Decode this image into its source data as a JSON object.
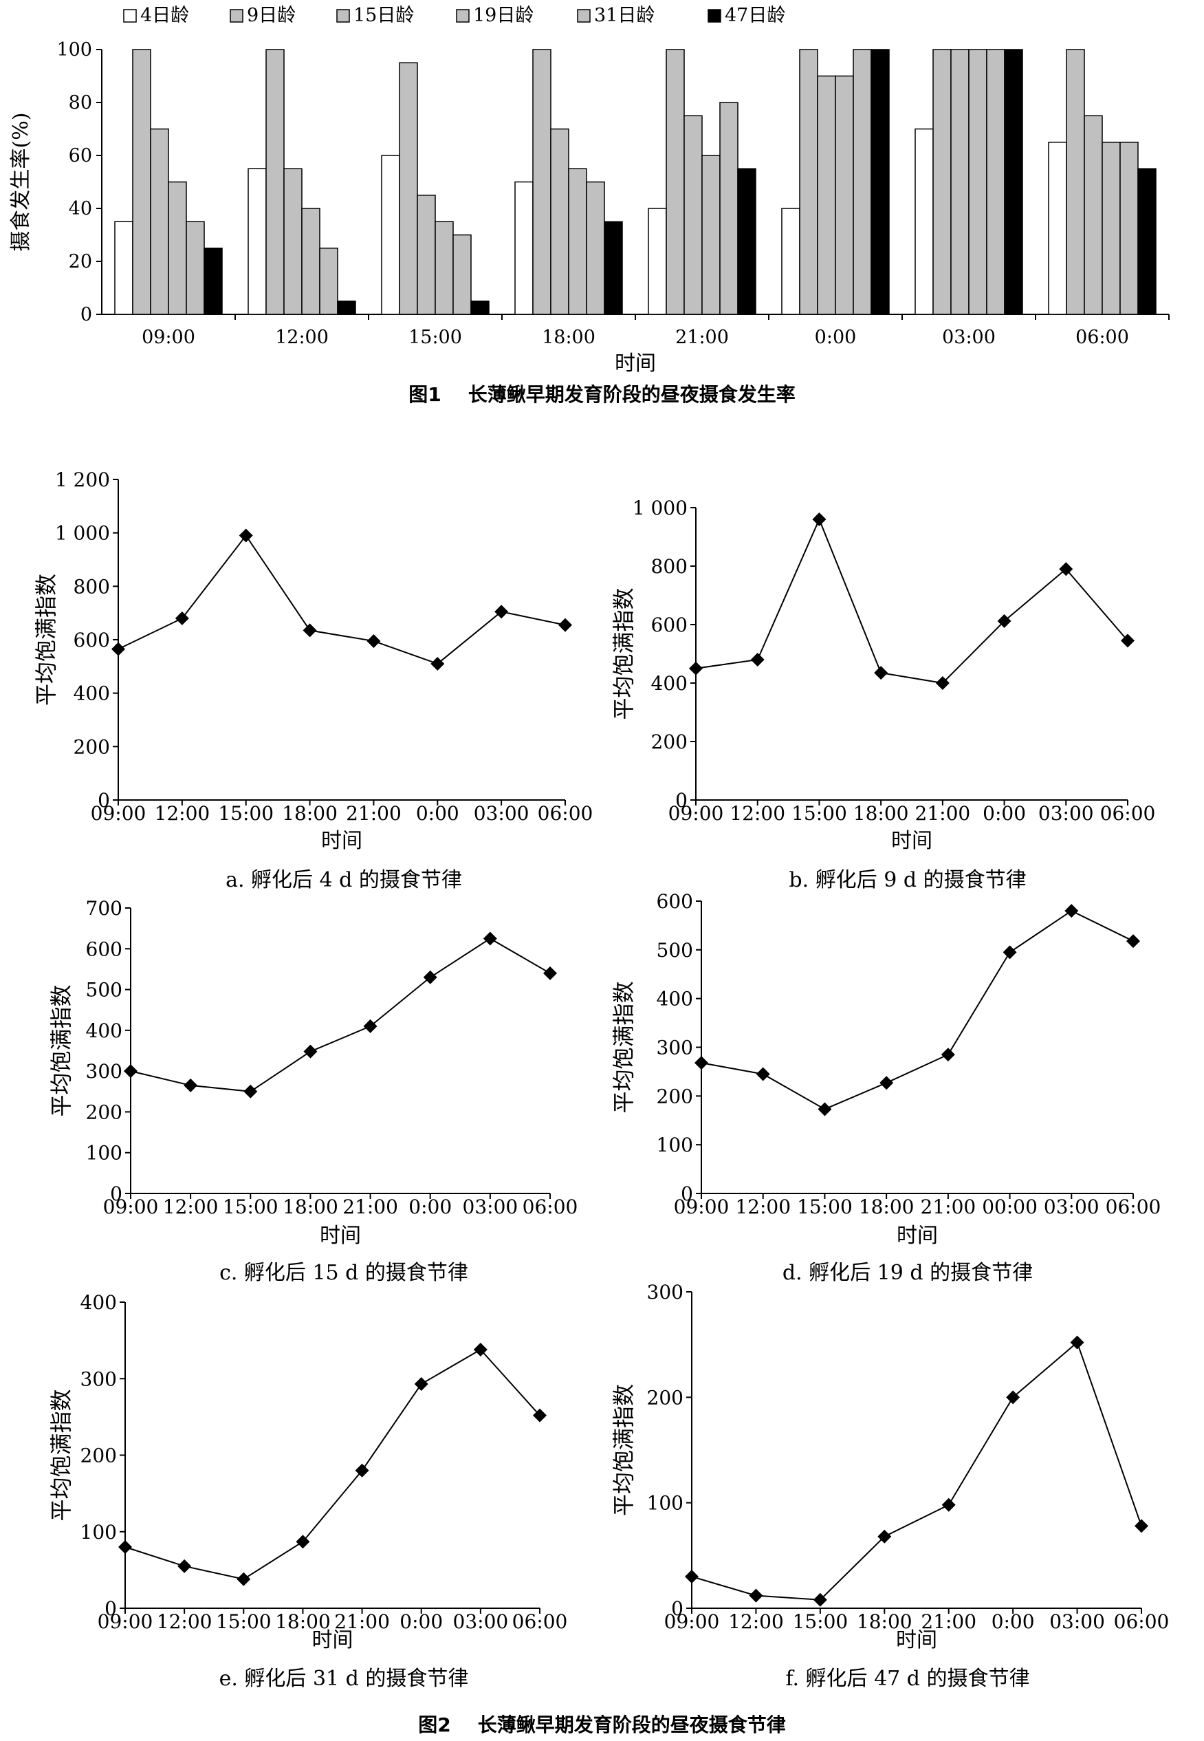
{
  "figure1": {
    "caption_label": "图1",
    "caption_title": "长薄鳅早期发育阶段的昼夜摄食发生率",
    "chart_data": {
      "type": "bar",
      "title": "",
      "xlabel": "时间",
      "ylabel": "摄食发生率(%)",
      "ylim": [
        0,
        100
      ],
      "yticks": [
        0,
        20,
        40,
        60,
        80,
        100
      ],
      "legend_position": "top",
      "categories": [
        "09:00",
        "12:00",
        "15:00",
        "18:00",
        "21:00",
        "0:00",
        "03:00",
        "06:00"
      ],
      "series": [
        {
          "name": "4日龄",
          "color": "#ffffff",
          "values": [
            35,
            55,
            60,
            50,
            40,
            40,
            70,
            65
          ]
        },
        {
          "name": "9日龄",
          "color": "#c0c0c0",
          "values": [
            100,
            100,
            95,
            100,
            100,
            100,
            100,
            100
          ]
        },
        {
          "name": "15日龄",
          "color": "#c0c0c0",
          "values": [
            70,
            55,
            45,
            70,
            75,
            90,
            100,
            75
          ]
        },
        {
          "name": "19日龄",
          "color": "#c0c0c0",
          "values": [
            50,
            40,
            35,
            55,
            60,
            90,
            100,
            65
          ]
        },
        {
          "name": "31日龄",
          "color": "#c0c0c0",
          "values": [
            35,
            25,
            30,
            50,
            80,
            100,
            100,
            65
          ]
        },
        {
          "name": "47日龄",
          "color": "#000000",
          "values": [
            25,
            5,
            5,
            35,
            55,
            100,
            100,
            55
          ]
        }
      ]
    }
  },
  "figure2": {
    "caption_label": "图2",
    "caption_title": "长薄鳅早期发育阶段的昼夜摄食节律",
    "panels": [
      {
        "caption": "a. 孵化后 4 d 的摄食节律",
        "chart_data": {
          "type": "line",
          "xlabel": "时间",
          "ylabel": "平均饱满指数",
          "x": [
            "09:00",
            "12:00",
            "15:00",
            "18:00",
            "21:00",
            "0:00",
            "03:00",
            "06:00"
          ],
          "ylim": [
            0,
            1200
          ],
          "yticks": [
            0,
            200,
            400,
            600,
            800,
            1000,
            1200
          ],
          "ytick_labels": [
            "0",
            "200",
            "400",
            "600",
            "800",
            "1 000",
            "1 200"
          ],
          "values": [
            565,
            680,
            990,
            635,
            595,
            510,
            705,
            655
          ]
        }
      },
      {
        "caption": "b. 孵化后 9 d 的摄食节律",
        "chart_data": {
          "type": "line",
          "xlabel": "时间",
          "ylabel": "平均饱满指数",
          "x": [
            "09:00",
            "12:00",
            "15:00",
            "18:00",
            "21:00",
            "0:00",
            "03:00",
            "06:00"
          ],
          "ylim": [
            0,
            1000
          ],
          "yticks": [
            0,
            200,
            400,
            600,
            800,
            1000
          ],
          "ytick_labels": [
            "0",
            "200",
            "400",
            "600",
            "800",
            "1 000"
          ],
          "values": [
            450,
            480,
            960,
            435,
            400,
            612,
            790,
            545
          ]
        }
      },
      {
        "caption": "c. 孵化后 15 d 的摄食节律",
        "chart_data": {
          "type": "line",
          "xlabel": "时间",
          "ylabel": "平均饱满指数",
          "x": [
            "09:00",
            "12:00",
            "15:00",
            "18:00",
            "21:00",
            "0:00",
            "03:00",
            "06:00"
          ],
          "ylim": [
            0,
            700
          ],
          "yticks": [
            0,
            100,
            200,
            300,
            400,
            500,
            600,
            700
          ],
          "ytick_labels": [
            "0",
            "100",
            "200",
            "300",
            "400",
            "500",
            "600",
            "700"
          ],
          "values": [
            300,
            265,
            250,
            348,
            410,
            530,
            625,
            540
          ]
        }
      },
      {
        "caption": "d. 孵化后 19 d 的摄食节律",
        "chart_data": {
          "type": "line",
          "xlabel": "时间",
          "ylabel": "平均饱满指数",
          "x": [
            "09:00",
            "12:00",
            "15:00",
            "18:00",
            "21:00",
            "00:00",
            "03:00",
            "06:00"
          ],
          "ylim": [
            0,
            600
          ],
          "yticks": [
            0,
            100,
            200,
            300,
            400,
            500,
            600
          ],
          "ytick_labels": [
            "0",
            "100",
            "200",
            "300",
            "400",
            "500",
            "600"
          ],
          "values": [
            268,
            245,
            173,
            227,
            285,
            495,
            580,
            518
          ]
        }
      },
      {
        "caption": "e. 孵化后 31 d 的摄食节律",
        "chart_data": {
          "type": "line",
          "xlabel": "时间",
          "ylabel": "平均饱满指数",
          "x": [
            "09:00",
            "12:00",
            "15:00",
            "18:00",
            "21:00",
            "0:00",
            "03:00",
            "06:00"
          ],
          "ylim": [
            0,
            400
          ],
          "yticks": [
            0,
            100,
            200,
            300,
            400
          ],
          "ytick_labels": [
            "0",
            "100",
            "200",
            "300",
            "400"
          ],
          "values": [
            80,
            55,
            38,
            87,
            180,
            293,
            338,
            252
          ]
        }
      },
      {
        "caption": "f. 孵化后 47 d 的摄食节律",
        "chart_data": {
          "type": "line",
          "xlabel": "时间",
          "ylabel": "平均饱满指数",
          "x": [
            "09:00",
            "12:00",
            "15:00",
            "18:00",
            "21:00",
            "0:00",
            "03:00",
            "06:00"
          ],
          "ylim": [
            0,
            300
          ],
          "yticks": [
            0,
            100,
            200,
            300
          ],
          "ytick_labels": [
            "0",
            "100",
            "200",
            "300"
          ],
          "values": [
            30,
            12,
            8,
            68,
            98,
            200,
            252,
            78
          ]
        }
      }
    ]
  }
}
